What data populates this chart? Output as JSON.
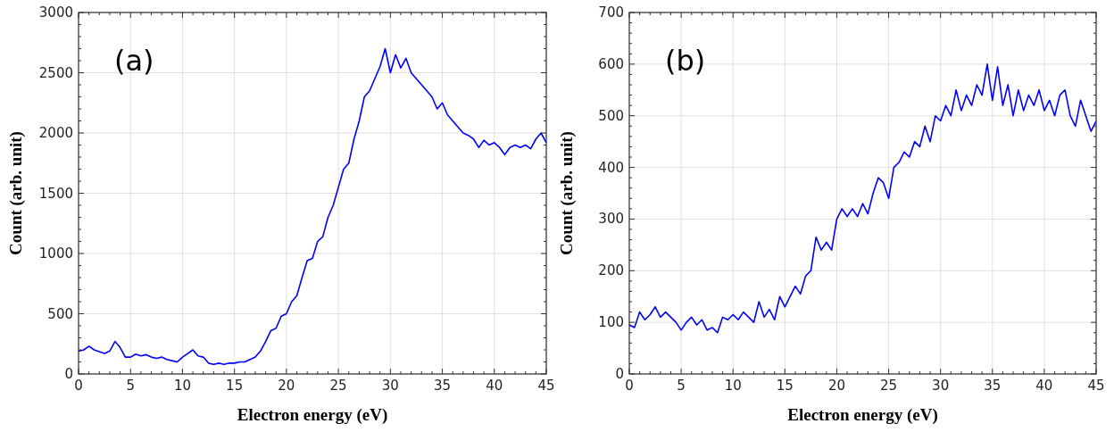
{
  "chart_data": [
    {
      "type": "line",
      "xlabel": "Electron energy (eV)",
      "ylabel": "Count (arb. unit)",
      "annotations": [
        "(a)"
      ],
      "xlim": [
        0,
        45
      ],
      "ylim": [
        0,
        3000
      ],
      "xticks": [
        0,
        5,
        10,
        15,
        20,
        25,
        30,
        35,
        40,
        45
      ],
      "yticks": [
        0,
        500,
        1000,
        1500,
        2000,
        2500,
        3000
      ],
      "grid": true,
      "line_style": "solid",
      "series": [
        {
          "color": "#0000ff",
          "x": [
            0,
            0.5,
            1,
            1.5,
            2,
            2.5,
            3,
            3.5,
            4,
            4.5,
            5,
            5.5,
            6,
            6.5,
            7,
            7.5,
            8,
            8.5,
            9,
            9.5,
            10,
            10.5,
            11,
            11.5,
            12,
            12.5,
            13,
            13.5,
            14,
            14.5,
            15,
            15.5,
            16,
            16.5,
            17,
            17.5,
            18,
            18.5,
            19,
            19.5,
            20,
            20.5,
            21,
            21.5,
            22,
            22.5,
            23,
            23.5,
            24,
            24.5,
            25,
            25.5,
            26,
            26.5,
            27,
            27.5,
            28,
            28.5,
            29,
            29.5,
            30,
            30.5,
            31,
            31.5,
            32,
            32.5,
            33,
            33.5,
            34,
            34.5,
            35,
            35.5,
            36,
            36.5,
            37,
            37.5,
            38,
            38.5,
            39,
            39.5,
            40,
            40.5,
            41,
            41.5,
            42,
            42.5,
            43,
            43.5,
            44,
            44.5,
            45
          ],
          "values": [
            190,
            200,
            230,
            200,
            185,
            170,
            190,
            270,
            220,
            140,
            140,
            165,
            150,
            160,
            140,
            130,
            140,
            120,
            110,
            100,
            140,
            170,
            200,
            150,
            140,
            90,
            80,
            90,
            80,
            90,
            90,
            100,
            100,
            120,
            140,
            190,
            270,
            360,
            380,
            480,
            500,
            600,
            650,
            800,
            940,
            960,
            1100,
            1140,
            1300,
            1400,
            1550,
            1700,
            1750,
            1950,
            2100,
            2300,
            2350,
            2450,
            2550,
            2700,
            2500,
            2650,
            2540,
            2620,
            2500,
            2450,
            2400,
            2350,
            2300,
            2200,
            2250,
            2150,
            2100,
            2050,
            2000,
            1980,
            1950,
            1880,
            1940,
            1900,
            1920,
            1880,
            1820,
            1880,
            1900,
            1880,
            1900,
            1870,
            1950,
            2000,
            1920
          ]
        }
      ]
    },
    {
      "type": "line",
      "xlabel": "Electron energy (eV)",
      "ylabel": "Count (arb. unit)",
      "annotations": [
        "(b)"
      ],
      "xlim": [
        0,
        45
      ],
      "ylim": [
        0,
        700
      ],
      "xticks": [
        0,
        5,
        10,
        15,
        20,
        25,
        30,
        35,
        40,
        45
      ],
      "yticks": [
        0,
        100,
        200,
        300,
        400,
        500,
        600,
        700
      ],
      "grid": true,
      "line_style": "solid",
      "series": [
        {
          "color": "#0000ff",
          "x": [
            0,
            0.5,
            1,
            1.5,
            2,
            2.5,
            3,
            3.5,
            4,
            4.5,
            5,
            5.5,
            6,
            6.5,
            7,
            7.5,
            8,
            8.5,
            9,
            9.5,
            10,
            10.5,
            11,
            11.5,
            12,
            12.5,
            13,
            13.5,
            14,
            14.5,
            15,
            15.5,
            16,
            16.5,
            17,
            17.5,
            18,
            18.5,
            19,
            19.5,
            20,
            20.5,
            21,
            21.5,
            22,
            22.5,
            23,
            23.5,
            24,
            24.5,
            25,
            25.5,
            26,
            26.5,
            27,
            27.5,
            28,
            28.5,
            29,
            29.5,
            30,
            30.5,
            31,
            31.5,
            32,
            32.5,
            33,
            33.5,
            34,
            34.5,
            35,
            35.5,
            36,
            36.5,
            37,
            37.5,
            38,
            38.5,
            39,
            39.5,
            40,
            40.5,
            41,
            41.5,
            42,
            42.5,
            43,
            43.5,
            44,
            44.5,
            45
          ],
          "values": [
            95,
            90,
            120,
            105,
            115,
            130,
            110,
            120,
            110,
            100,
            85,
            100,
            110,
            95,
            105,
            85,
            90,
            80,
            110,
            105,
            115,
            105,
            120,
            110,
            100,
            140,
            110,
            125,
            105,
            150,
            130,
            150,
            170,
            155,
            190,
            200,
            265,
            240,
            255,
            240,
            300,
            320,
            305,
            320,
            305,
            330,
            310,
            350,
            380,
            370,
            340,
            400,
            410,
            430,
            420,
            450,
            440,
            480,
            450,
            500,
            490,
            520,
            500,
            550,
            510,
            540,
            520,
            560,
            540,
            600,
            530,
            595,
            520,
            560,
            500,
            550,
            510,
            540,
            520,
            550,
            510,
            530,
            500,
            540,
            550,
            500,
            480,
            530,
            500,
            470,
            490
          ]
        }
      ]
    }
  ]
}
